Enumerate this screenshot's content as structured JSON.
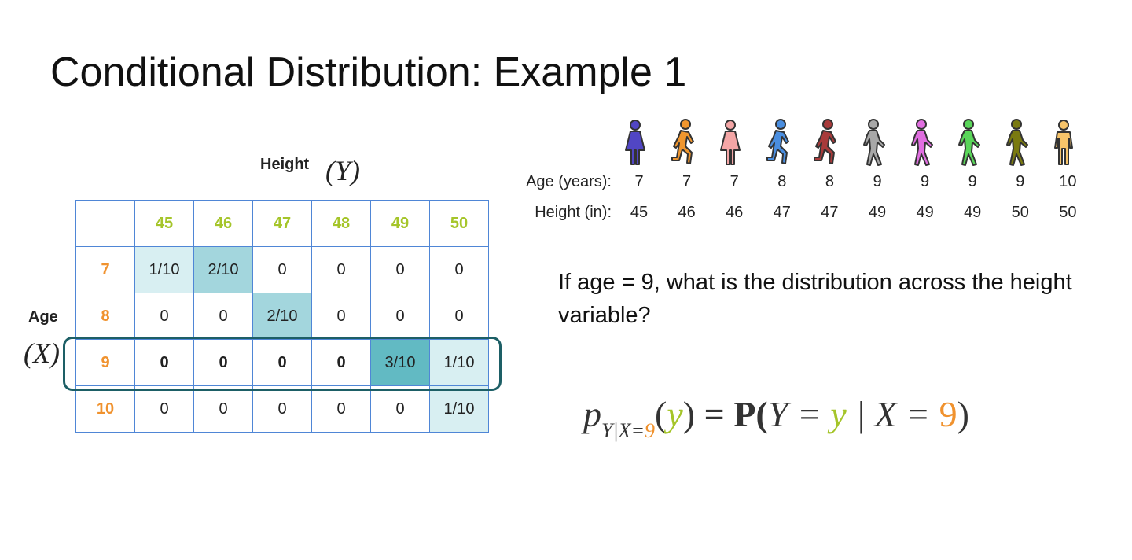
{
  "slide": {
    "title": "Conditional Distribution: Example 1",
    "height_label": "Height",
    "height_var": "(Y)",
    "age_label": "Age",
    "age_var": "(X)"
  },
  "colors": {
    "height_values": "#a5c52a",
    "age_values": "#f0922e",
    "highlight_border": "#1d5f66",
    "grid": "#4f86d6",
    "shade_light": "#d8eff2",
    "shade_mid": "#a3d6dd",
    "shade_dark": "#62bac3"
  },
  "table": {
    "column_headers": [
      "45",
      "46",
      "47",
      "48",
      "49",
      "50"
    ],
    "rows": [
      {
        "age": "7",
        "cells": [
          "1/10",
          "2/10",
          "0",
          "0",
          "0",
          "0"
        ]
      },
      {
        "age": "8",
        "cells": [
          "0",
          "0",
          "2/10",
          "0",
          "0",
          "0"
        ]
      },
      {
        "age": "9",
        "cells": [
          "0",
          "0",
          "0",
          "0",
          "3/10",
          "1/10"
        ],
        "highlighted": true
      },
      {
        "age": "10",
        "cells": [
          "0",
          "0",
          "0",
          "0",
          "0",
          "1/10"
        ]
      }
    ]
  },
  "people": {
    "icons": [
      {
        "icon": "woman-standing-icon",
        "color": "#5146c4"
      },
      {
        "icon": "person-running-icon",
        "color": "#f0962e"
      },
      {
        "icon": "woman-standing-icon",
        "color": "#f4a6a6"
      },
      {
        "icon": "person-running-icon",
        "color": "#4a8ee0"
      },
      {
        "icon": "person-running-icon",
        "color": "#a83a3a"
      },
      {
        "icon": "person-walking-icon",
        "color": "#a8a8a8"
      },
      {
        "icon": "person-walking-icon",
        "color": "#e06ee0"
      },
      {
        "icon": "person-walking-icon",
        "color": "#5ad65a"
      },
      {
        "icon": "person-walking-icon",
        "color": "#7a7a10"
      },
      {
        "icon": "man-standing-icon",
        "color": "#f7c46a"
      }
    ],
    "age_label": "Age (years):",
    "ages": [
      "7",
      "7",
      "7",
      "8",
      "8",
      "9",
      "9",
      "9",
      "9",
      "10"
    ],
    "height_label": "Height (in):",
    "heights": [
      "45",
      "46",
      "46",
      "47",
      "47",
      "49",
      "49",
      "49",
      "50",
      "50"
    ]
  },
  "question": "If age = 9, what is the distribution across the height variable?",
  "formula": {
    "p": "p",
    "subscript_a": "Y|X=",
    "subscript_9": "9",
    "open": "(",
    "y": "y",
    "close": ")",
    "equals_P": " = P(",
    "Y_eq": "Y = ",
    "y2": "y",
    "given": " | X = ",
    "nine": "9",
    "end": ")"
  }
}
